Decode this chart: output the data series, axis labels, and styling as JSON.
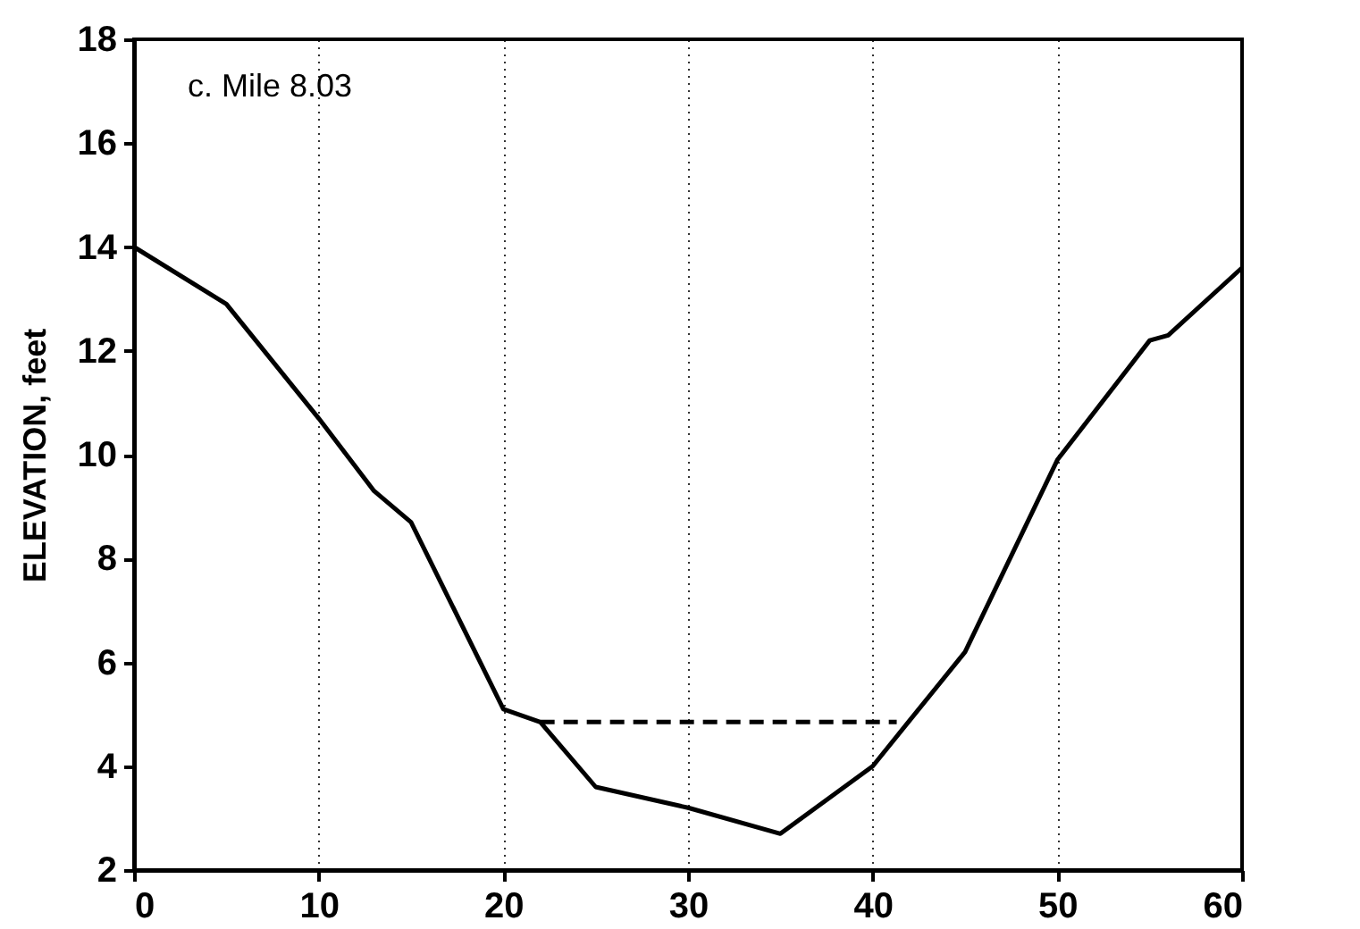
{
  "chart_data": {
    "type": "line",
    "ylabel": "ELEVATION, feet",
    "annotations": [
      "c.  Mile 8.03"
    ],
    "series": [
      {
        "color": "#000000",
        "line_style": "solid",
        "x": [
          0,
          5,
          10,
          13,
          15,
          20,
          22,
          25,
          30,
          35,
          40,
          45,
          50,
          55,
          56,
          60
        ],
        "values": [
          14.0,
          12.9,
          10.7,
          9.3,
          8.7,
          5.1,
          4.85,
          3.6,
          3.2,
          2.7,
          4.0,
          6.2,
          9.9,
          12.2,
          12.3,
          13.6
        ]
      },
      {
        "color": "#000000",
        "line_style": "dashed",
        "x": [
          22,
          41.3
        ],
        "values": [
          4.85,
          4.85
        ]
      }
    ],
    "xlim": [
      0,
      60
    ],
    "xticks": [
      0,
      10,
      20,
      30,
      40,
      50,
      60
    ],
    "ylim": [
      2,
      18
    ],
    "yticks": [
      2,
      4,
      6,
      8,
      10,
      12,
      14,
      16,
      18
    ],
    "grid": "x",
    "marker": "none"
  }
}
